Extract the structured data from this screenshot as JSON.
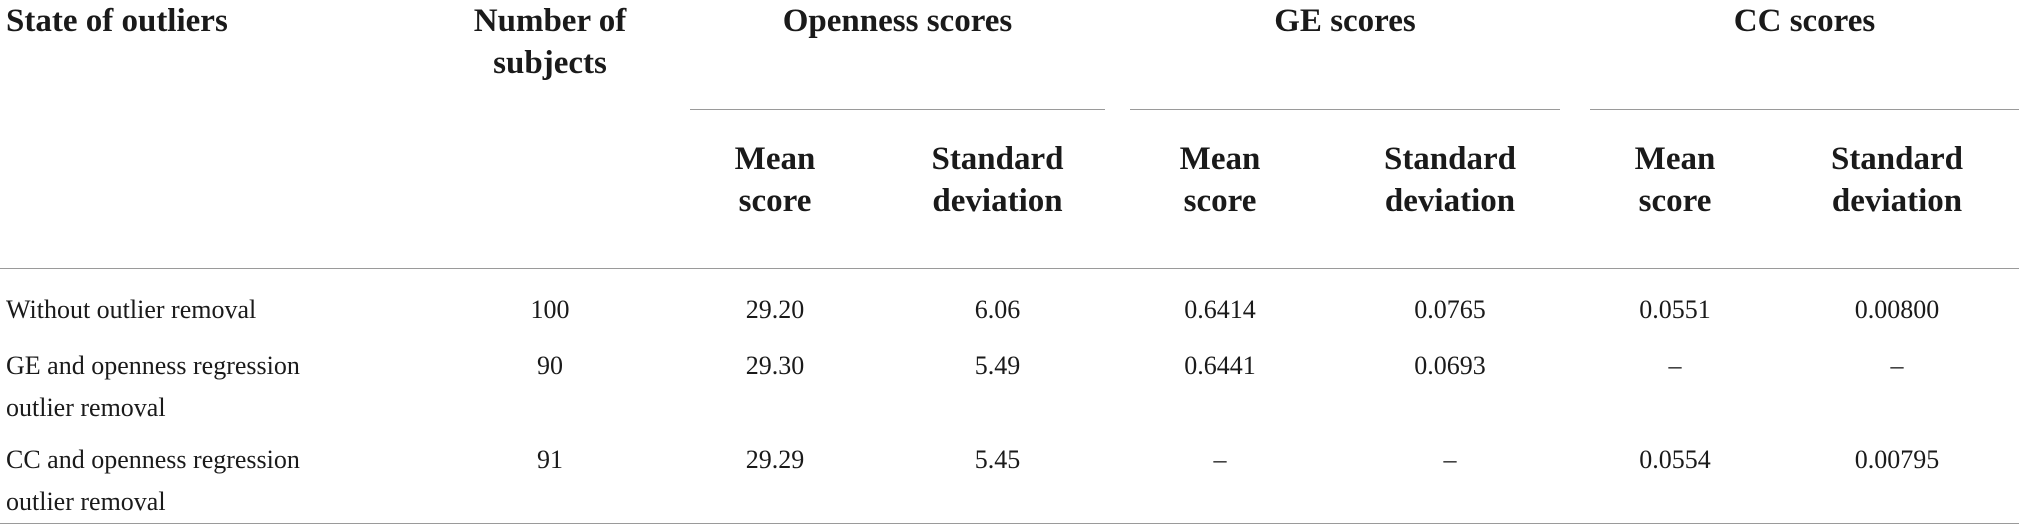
{
  "table": {
    "headers": {
      "state": "State of outliers",
      "subjects": "Number of subjects",
      "openness": "Openness scores",
      "ge": "GE scores",
      "cc": "CC scores",
      "mean": "Mean score",
      "sd": "Standard deviation"
    },
    "rows": [
      {
        "state": "Without outlier removal",
        "subjects": "100",
        "open_mean": "29.20",
        "open_sd": "6.06",
        "ge_mean": "0.6414",
        "ge_sd": "0.0765",
        "cc_mean": "0.0551",
        "cc_sd": "0.00800"
      },
      {
        "state": "GE and openness regression outlier removal",
        "subjects": "90",
        "open_mean": "29.30",
        "open_sd": "5.49",
        "ge_mean": "0.6441",
        "ge_sd": "0.0693",
        "cc_mean": "–",
        "cc_sd": "–"
      },
      {
        "state": "CC and openness regression outlier removal",
        "subjects": "91",
        "open_mean": "29.29",
        "open_sd": "5.45",
        "ge_mean": "–",
        "ge_sd": "–",
        "cc_mean": "0.0554",
        "cc_sd": "0.00795"
      }
    ]
  }
}
